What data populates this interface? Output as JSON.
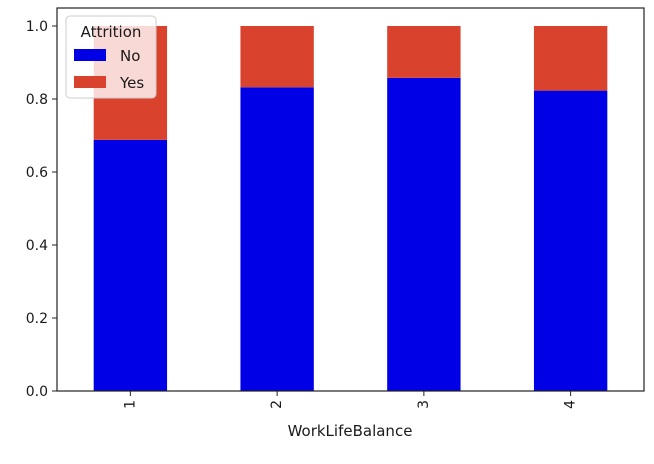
{
  "chart_data": {
    "type": "bar",
    "stacked": true,
    "categories": [
      "1",
      "2",
      "3",
      "4"
    ],
    "series": [
      {
        "name": "No",
        "color": "#0000e6",
        "values": [
          0.688,
          0.832,
          0.858,
          0.823
        ]
      },
      {
        "name": "Yes",
        "color": "#d9432e",
        "values": [
          0.312,
          0.168,
          0.142,
          0.177
        ]
      }
    ],
    "xlabel": "WorkLifeBalance",
    "ylabel": "",
    "ylim": [
      0,
      1.0
    ],
    "yticks": [
      "0.0",
      "0.2",
      "0.4",
      "0.6",
      "0.8",
      "1.0"
    ],
    "xtick_rotation": "vertical",
    "grid": false,
    "legend": {
      "title": "Attrition",
      "placement": "top-left"
    }
  }
}
